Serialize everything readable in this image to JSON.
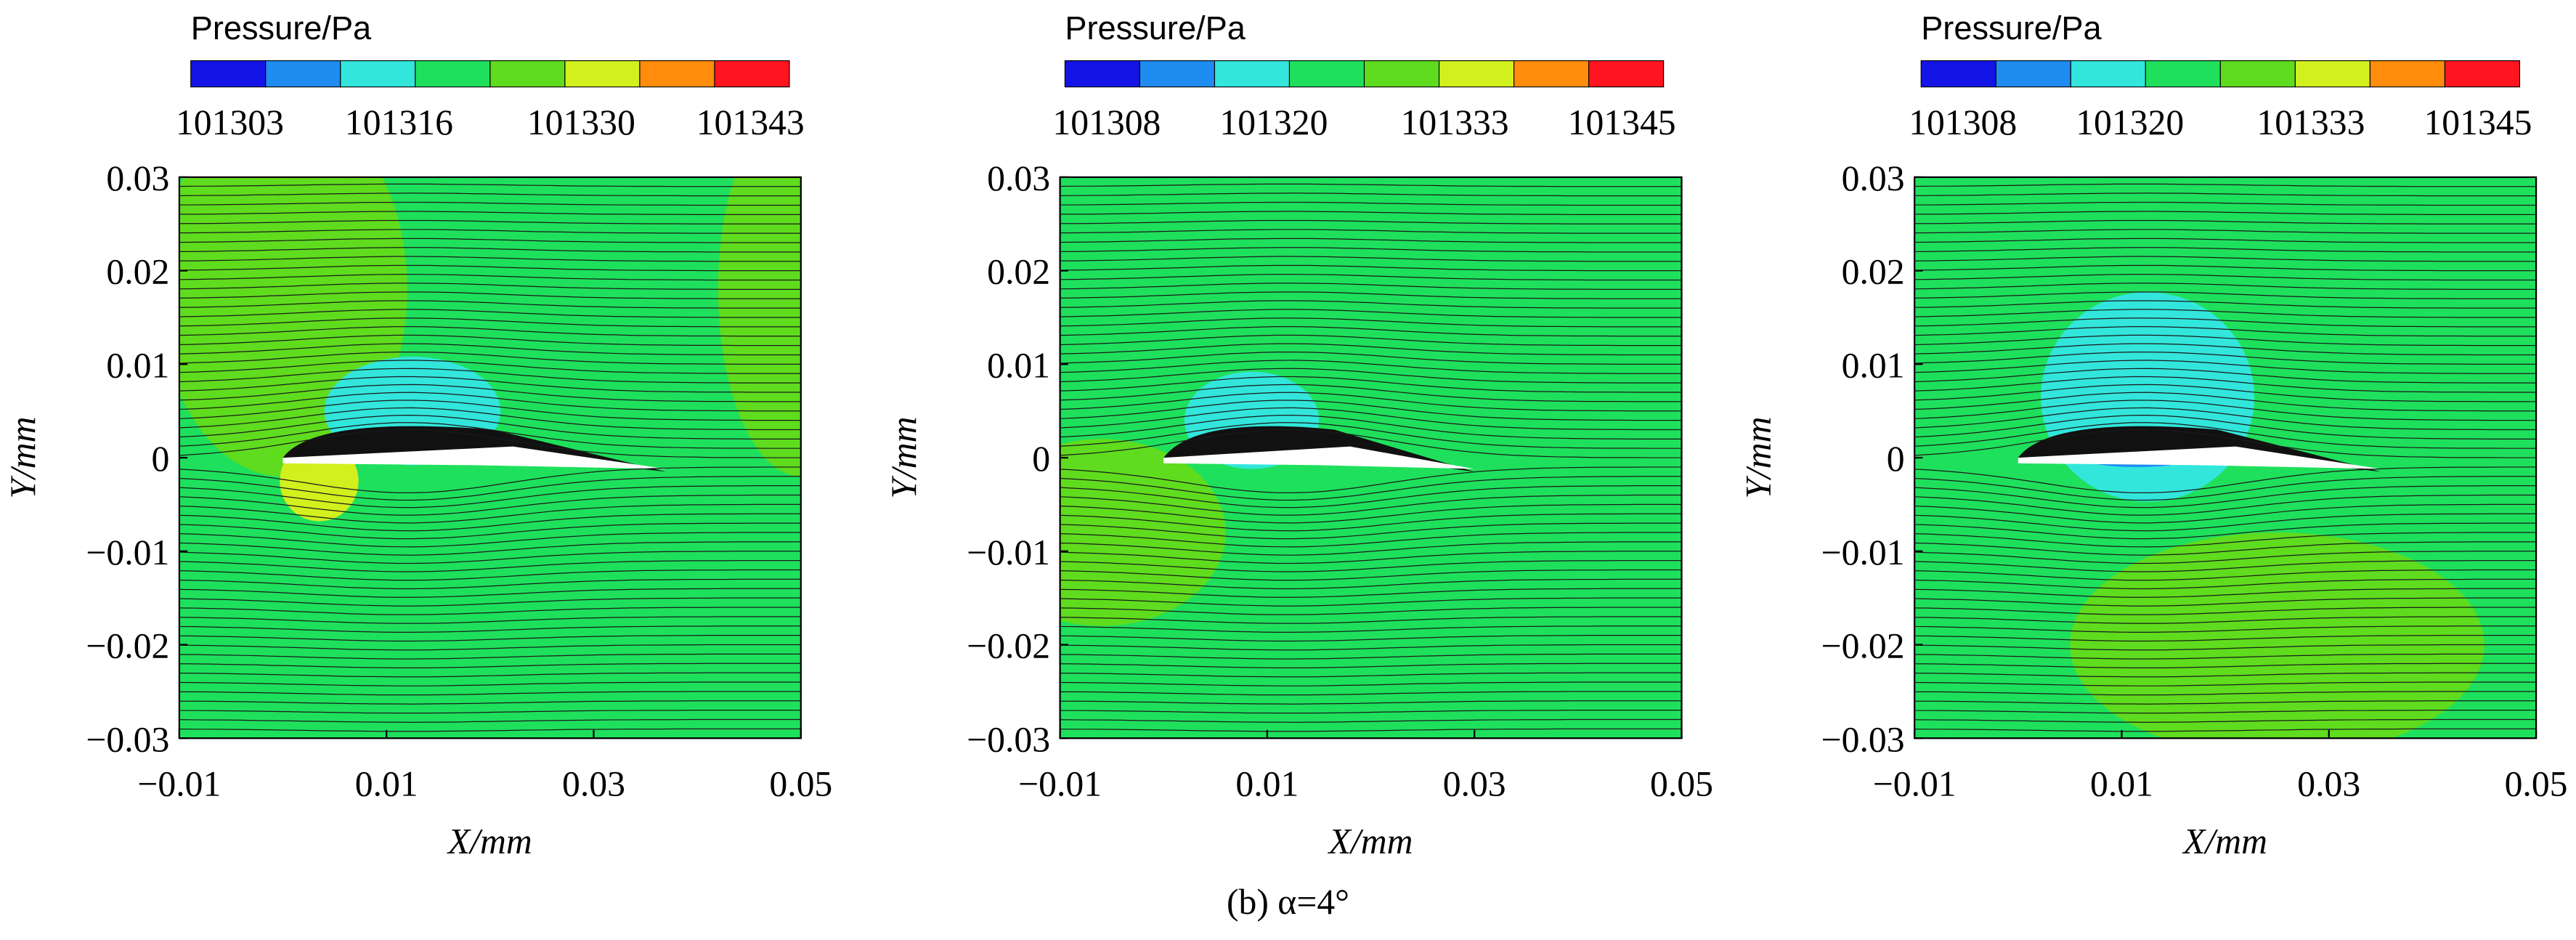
{
  "chart_data": [
    {
      "type": "contour",
      "colorbar_label": "Pressure/Pa",
      "colorbar_colors": [
        "#1414e6",
        "#1e8cf0",
        "#32e6dc",
        "#1fe05c",
        "#5fdc1e",
        "#d2ef1e",
        "#ff8c0a",
        "#ff1420"
      ],
      "clim": [
        101300,
        101346
      ],
      "cticks": [
        101303,
        101316,
        101330,
        101343
      ],
      "xlabel": "X/mm",
      "ylabel": "Y/mm",
      "xlim": [
        -0.01,
        0.05
      ],
      "xticks": [
        {
          "value": -0.01,
          "label": "−0.01"
        },
        0.01,
        0.03,
        0.05
      ],
      "ylim": [
        -0.03,
        0.03
      ],
      "yticks": [
        {
          "value": -0.03,
          "label": "−0.03"
        },
        {
          "value": -0.02,
          "label": "−0.02"
        },
        {
          "value": -0.01,
          "label": "−0.01"
        },
        0,
        0.01,
        0.02,
        0.03
      ]
    },
    {
      "type": "contour",
      "colorbar_label": "Pressure/Pa",
      "colorbar_colors": [
        "#1414e6",
        "#1e8cf0",
        "#32e6dc",
        "#1fe05c",
        "#5fdc1e",
        "#d2ef1e",
        "#ff8c0a",
        "#ff1420"
      ],
      "clim": [
        101305,
        101348
      ],
      "cticks": [
        101308,
        101320,
        101333,
        101345
      ],
      "xlabel": "X/mm",
      "ylabel": "Y/mm",
      "xlim": [
        -0.01,
        0.05
      ],
      "xticks": [
        {
          "value": -0.01,
          "label": "−0.01"
        },
        0.01,
        0.03,
        0.05
      ],
      "ylim": [
        -0.03,
        0.03
      ],
      "yticks": [
        {
          "value": -0.03,
          "label": "−0.03"
        },
        {
          "value": -0.02,
          "label": "−0.02"
        },
        {
          "value": -0.01,
          "label": "−0.01"
        },
        0,
        0.01,
        0.02,
        0.03
      ]
    },
    {
      "type": "contour",
      "colorbar_label": "Pressure/Pa",
      "colorbar_colors": [
        "#1414e6",
        "#1e8cf0",
        "#32e6dc",
        "#1fe05c",
        "#5fdc1e",
        "#d2ef1e",
        "#ff8c0a",
        "#ff1420"
      ],
      "clim": [
        101305,
        101348
      ],
      "cticks": [
        101308,
        101320,
        101333,
        101345
      ],
      "xlabel": "X/mm",
      "ylabel": "Y/mm",
      "xlim": [
        -0.01,
        0.05
      ],
      "xticks": [
        {
          "value": -0.01,
          "label": "−0.01"
        },
        0.01,
        0.03,
        0.05
      ],
      "ylim": [
        -0.03,
        0.03
      ],
      "yticks": [
        {
          "value": -0.03,
          "label": "−0.03"
        },
        {
          "value": -0.02,
          "label": "−0.02"
        },
        {
          "value": -0.01,
          "label": "−0.01"
        },
        0,
        0.01,
        0.02,
        0.03
      ]
    }
  ],
  "caption": "(b) α=4°"
}
